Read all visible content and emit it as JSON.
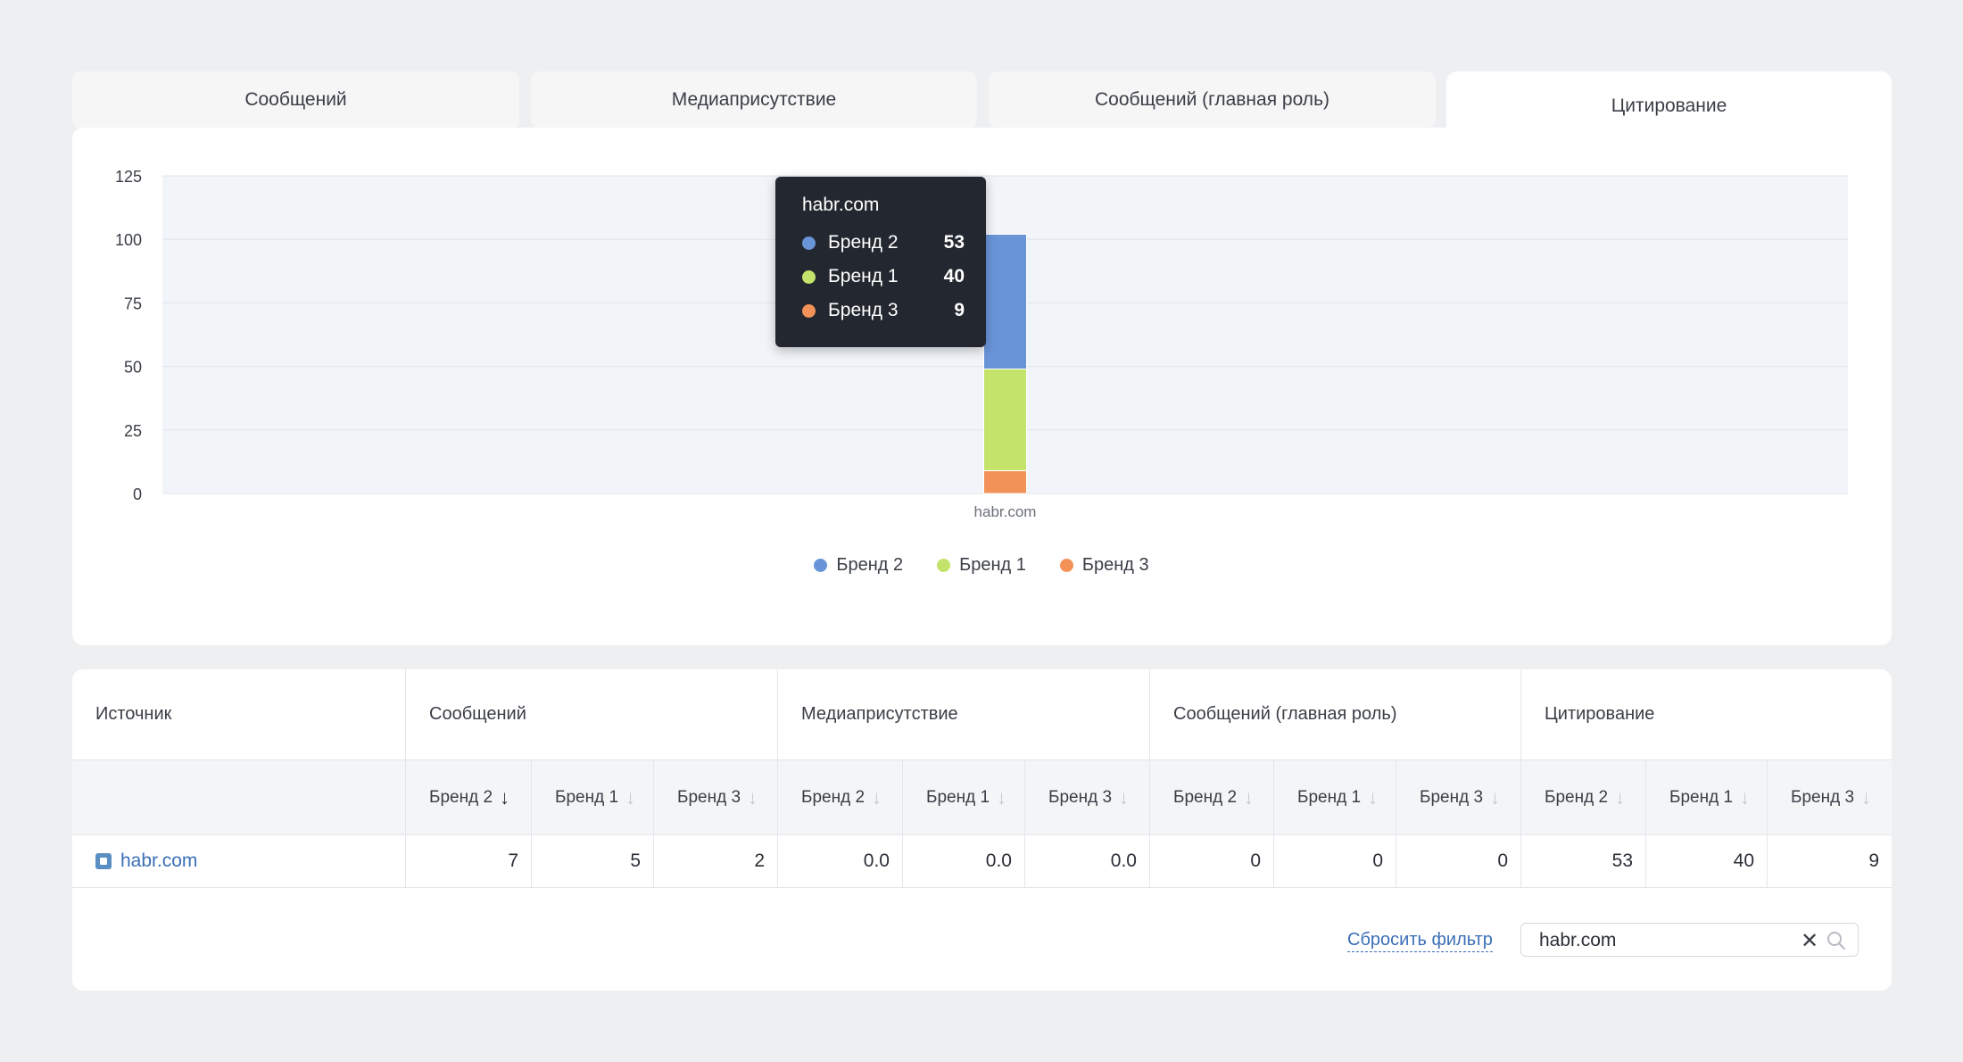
{
  "tabs": [
    {
      "label": "Сообщений"
    },
    {
      "label": "Медиаприсутствие"
    },
    {
      "label": "Сообщений (главная роль)"
    },
    {
      "label": "Цитирование"
    }
  ],
  "colors": {
    "brand2": "#6a94d8",
    "brand1": "#c4e36b",
    "brand3": "#f39258",
    "tooltip_bg": "#232830"
  },
  "chart_data": {
    "type": "bar",
    "stacked": true,
    "categories": [
      "habr.com"
    ],
    "series": [
      {
        "name": "Бренд 2",
        "values": [
          53
        ]
      },
      {
        "name": "Бренд 1",
        "values": [
          40
        ]
      },
      {
        "name": "Бренд 3",
        "values": [
          9
        ]
      }
    ],
    "y_ticks": [
      "0",
      "25",
      "50",
      "75",
      "100",
      "125"
    ],
    "ylim": [
      0,
      125
    ],
    "grid": true,
    "legend_position": "bottom-center"
  },
  "tooltip": {
    "title": "habr.com",
    "rows": [
      {
        "label": "Бренд 2",
        "value": "53",
        "color": "#6a94d8"
      },
      {
        "label": "Бренд 1",
        "value": "40",
        "color": "#c4e36b"
      },
      {
        "label": "Бренд 3",
        "value": "9",
        "color": "#f39258"
      }
    ]
  },
  "legend": [
    {
      "label": "Бренд 2",
      "color": "#6a94d8"
    },
    {
      "label": "Бренд 1",
      "color": "#c4e36b"
    },
    {
      "label": "Бренд 3",
      "color": "#f39258"
    }
  ],
  "table": {
    "source_header": "Источник",
    "groups": [
      "Сообщений",
      "Медиаприсутствие",
      "Сообщений (главная роль)",
      "Цитирование"
    ],
    "sub_headers": [
      "Бренд 2",
      "Бренд 1",
      "Бренд 3",
      "Бренд 2",
      "Бренд 1",
      "Бренд 3",
      "Бренд 2",
      "Бренд 1",
      "Бренд 3",
      "Бренд 2",
      "Бренд 1",
      "Бренд 3"
    ],
    "sort_arrow": "↓",
    "rows": [
      {
        "source": "habr.com",
        "favicon": "habr-favicon-icon",
        "values": [
          "7",
          "5",
          "2",
          "0.0",
          "0.0",
          "0.0",
          "0",
          "0",
          "0",
          "53",
          "40",
          "9"
        ]
      }
    ]
  },
  "filter": {
    "reset_label": "Сбросить фильтр",
    "search_value": "habr.com",
    "clear_icon": "close-icon",
    "search_icon": "search-icon"
  }
}
